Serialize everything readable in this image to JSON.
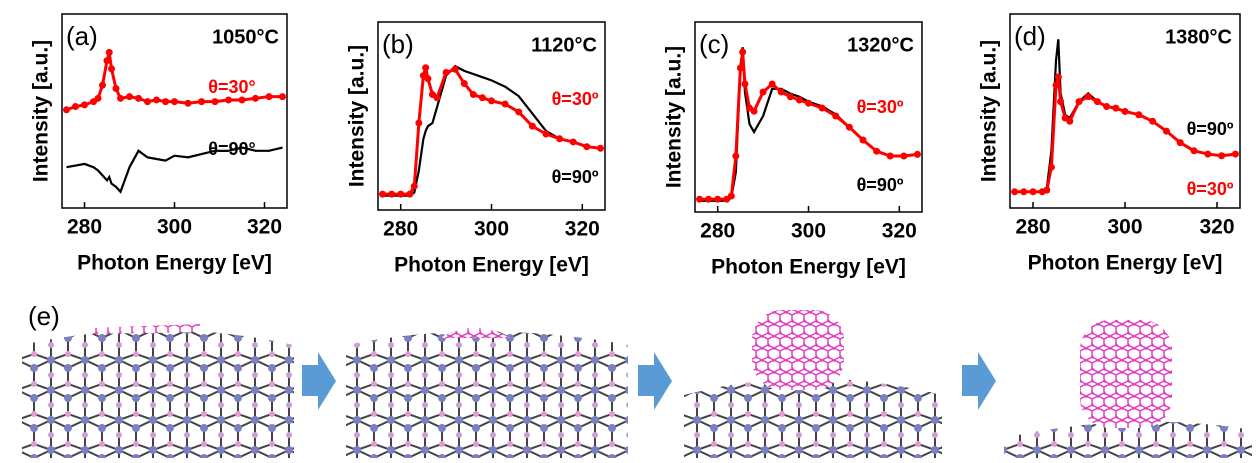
{
  "chart_data": [
    {
      "type": "line",
      "panel": "(a)",
      "temperature": "1050°C",
      "x_label": "Photon Energy [eV]",
      "y_label": "Intensity [a.u.]",
      "xlim": [
        275,
        325
      ],
      "xticks": [
        280,
        300,
        320
      ],
      "ylim": [
        0,
        1
      ],
      "x": [
        276,
        278,
        280,
        282,
        283,
        284,
        285,
        285.5,
        286,
        287,
        288,
        290,
        292,
        294,
        296,
        298,
        300,
        303,
        306,
        309,
        312,
        315,
        318,
        321,
        324
      ],
      "series": [
        {
          "name": "θ=30°",
          "color": "#ff0000",
          "values": [
            0.55,
            0.57,
            0.58,
            0.6,
            0.62,
            0.7,
            0.85,
            0.9,
            0.8,
            0.68,
            0.62,
            0.63,
            0.62,
            0.6,
            0.61,
            0.6,
            0.6,
            0.59,
            0.6,
            0.6,
            0.61,
            0.61,
            0.62,
            0.63,
            0.63
          ]
        },
        {
          "name": "θ=90°",
          "color": "#000000",
          "values": [
            0.2,
            0.21,
            0.22,
            0.2,
            0.18,
            0.15,
            0.12,
            0.14,
            0.1,
            0.08,
            0.05,
            0.2,
            0.3,
            0.26,
            0.25,
            0.24,
            0.27,
            0.26,
            0.28,
            0.3,
            0.3,
            0.32,
            0.3,
            0.3,
            0.32
          ]
        }
      ]
    },
    {
      "type": "line",
      "panel": "(b)",
      "temperature": "1120°C",
      "x_label": "Photon Energy [eV]",
      "y_label": "Intensity [a.u.]",
      "xlim": [
        275,
        325
      ],
      "xticks": [
        280,
        300,
        320
      ],
      "ylim": [
        0,
        1
      ],
      "x": [
        276,
        278,
        280,
        282,
        283,
        284,
        285,
        285.5,
        286,
        287,
        288,
        290,
        292,
        294,
        296,
        298,
        300,
        303,
        306,
        309,
        312,
        315,
        318,
        321,
        324
      ],
      "series": [
        {
          "name": "θ=30º",
          "color": "#ff0000",
          "values": [
            0.05,
            0.05,
            0.05,
            0.05,
            0.1,
            0.5,
            0.8,
            0.85,
            0.78,
            0.68,
            0.66,
            0.82,
            0.84,
            0.75,
            0.68,
            0.66,
            0.64,
            0.62,
            0.57,
            0.48,
            0.43,
            0.4,
            0.38,
            0.35,
            0.34
          ]
        },
        {
          "name": "θ=90º",
          "color": "#000000",
          "values": [
            0.04,
            0.04,
            0.04,
            0.04,
            0.06,
            0.2,
            0.4,
            0.45,
            0.48,
            0.5,
            0.6,
            0.8,
            0.86,
            0.83,
            0.81,
            0.79,
            0.77,
            0.73,
            0.67,
            0.56,
            0.45,
            0.4,
            0.38,
            0.35,
            0.34
          ]
        }
      ]
    },
    {
      "type": "line",
      "panel": "(c)",
      "temperature": "1320°C",
      "x_label": "Photon Energy [eV]",
      "y_label": "Intensity [a.u.]",
      "xlim": [
        275,
        325
      ],
      "xticks": [
        280,
        300,
        320
      ],
      "ylim": [
        0,
        1
      ],
      "x": [
        276,
        278,
        280,
        282,
        283,
        284,
        285,
        285.5,
        286,
        287,
        288,
        290,
        292,
        294,
        296,
        298,
        300,
        303,
        306,
        309,
        312,
        315,
        318,
        321,
        324
      ],
      "series": [
        {
          "name": "θ=30º",
          "color": "#ff0000",
          "values": [
            0.03,
            0.03,
            0.03,
            0.03,
            0.05,
            0.3,
            0.85,
            0.95,
            0.75,
            0.6,
            0.58,
            0.7,
            0.75,
            0.7,
            0.67,
            0.65,
            0.63,
            0.6,
            0.55,
            0.48,
            0.4,
            0.33,
            0.3,
            0.3,
            0.31
          ]
        },
        {
          "name": "θ=90º",
          "color": "#000000",
          "values": [
            0.02,
            0.02,
            0.02,
            0.02,
            0.04,
            0.2,
            0.85,
            0.98,
            0.7,
            0.5,
            0.45,
            0.55,
            0.72,
            0.72,
            0.69,
            0.67,
            0.64,
            0.61,
            0.56,
            0.48,
            0.4,
            0.33,
            0.3,
            0.3,
            0.31
          ]
        }
      ]
    },
    {
      "type": "line",
      "panel": "(d)",
      "temperature": "1380°C",
      "x_label": "Photon Energy [eV]",
      "y_label": "Intensity [a.u.]",
      "xlim": [
        275,
        325
      ],
      "xticks": [
        280,
        300,
        320
      ],
      "ylim": [
        0,
        1
      ],
      "x": [
        276,
        278,
        280,
        282,
        283,
        284,
        285,
        285.5,
        286,
        287,
        288,
        290,
        292,
        294,
        296,
        298,
        300,
        303,
        306,
        309,
        312,
        315,
        318,
        321,
        324
      ],
      "series": [
        {
          "name": "θ=30º",
          "color": "#ff0000",
          "values": [
            0.05,
            0.05,
            0.05,
            0.05,
            0.06,
            0.2,
            0.7,
            0.75,
            0.6,
            0.5,
            0.48,
            0.6,
            0.63,
            0.6,
            0.57,
            0.56,
            0.54,
            0.52,
            0.48,
            0.42,
            0.35,
            0.3,
            0.28,
            0.27,
            0.28
          ]
        },
        {
          "name": "θ=90º",
          "color": "#000000",
          "values": [
            0.05,
            0.05,
            0.05,
            0.05,
            0.07,
            0.3,
            0.85,
            0.98,
            0.65,
            0.52,
            0.5,
            0.6,
            0.65,
            0.6,
            0.57,
            0.56,
            0.54,
            0.52,
            0.48,
            0.42,
            0.35,
            0.3,
            0.28,
            0.27,
            0.28
          ]
        }
      ]
    }
  ],
  "panel_e": {
    "label": "(e)"
  }
}
